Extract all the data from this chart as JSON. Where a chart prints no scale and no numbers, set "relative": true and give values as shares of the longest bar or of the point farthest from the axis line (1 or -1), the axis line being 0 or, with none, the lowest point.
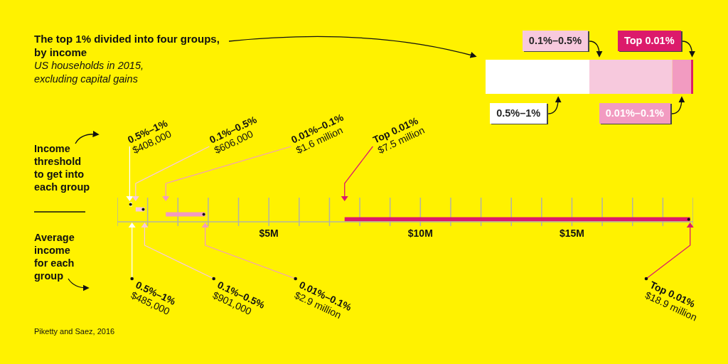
{
  "chart_data": [
    {
      "type": "bar",
      "orientation": "horizontal",
      "stacked": true,
      "relative": true,
      "categories": [
        null
      ],
      "series": [
        {
          "name": "0.5%–1%",
          "color": "#ffffff",
          "values": [
            0.5
          ]
        },
        {
          "name": "0.1%–0.5%",
          "color": "#f7c9dd",
          "values": [
            0.4
          ]
        },
        {
          "name": "0.01%–0.1%",
          "color": "#f29bc1",
          "values": [
            0.09
          ]
        },
        {
          "name": "Top 0.01%",
          "color": "#dc1a6b",
          "values": [
            0.01
          ]
        }
      ],
      "annotations": [
        "The top 1% divided into four groups, by income",
        "US households in 2015, excluding capital gains"
      ]
    },
    {
      "type": "bar",
      "orientation": "horizontal",
      "categories": [
        null,
        null,
        null,
        null
      ],
      "base": [
        0.408,
        0.606,
        1.6,
        7.5
      ],
      "values": [
        0.077,
        0.295,
        1.3,
        11.4
      ],
      "colors": [
        "#ffffff",
        "#f7c9dd",
        "#f29bc1",
        "#dc1a6b"
      ],
      "xlim": [
        0,
        19
      ],
      "xticks": [
        {
          "value": 0,
          "label": null
        },
        {
          "value": 1,
          "label": null
        },
        {
          "value": 2,
          "label": null
        },
        {
          "value": 3,
          "label": null
        },
        {
          "value": 4,
          "label": null
        },
        {
          "value": 5,
          "label": "$5M"
        },
        {
          "value": 6,
          "label": null
        },
        {
          "value": 7,
          "label": null
        },
        {
          "value": 8,
          "label": null
        },
        {
          "value": 9,
          "label": null
        },
        {
          "value": 10,
          "label": "$10M"
        },
        {
          "value": 11,
          "label": null
        },
        {
          "value": 12,
          "label": null
        },
        {
          "value": 13,
          "label": null
        },
        {
          "value": 14,
          "label": null
        },
        {
          "value": 15,
          "label": "$15M"
        },
        {
          "value": 16,
          "label": null
        },
        {
          "value": 17,
          "label": null
        },
        {
          "value": 18,
          "label": null
        },
        {
          "value": 19,
          "label": null
        }
      ],
      "grid": "x",
      "annotations": [
        "Income threshold to get into each group",
        "Average income for each group",
        "0.5%–1%\n$408,000",
        "0.1%–0.5%\n$606,000",
        "0.01%–0.1%\n$1.6 million",
        "Top 0.01%\n$7.5 million",
        "0.5%–1%\n$485,000",
        "0.1%–0.5%\n$901,000",
        "0.01%–0.1%\n$2.9 million",
        "Top 0.01%\n$18.9 million",
        "Piketty and Saez, 2016"
      ]
    }
  ]
}
